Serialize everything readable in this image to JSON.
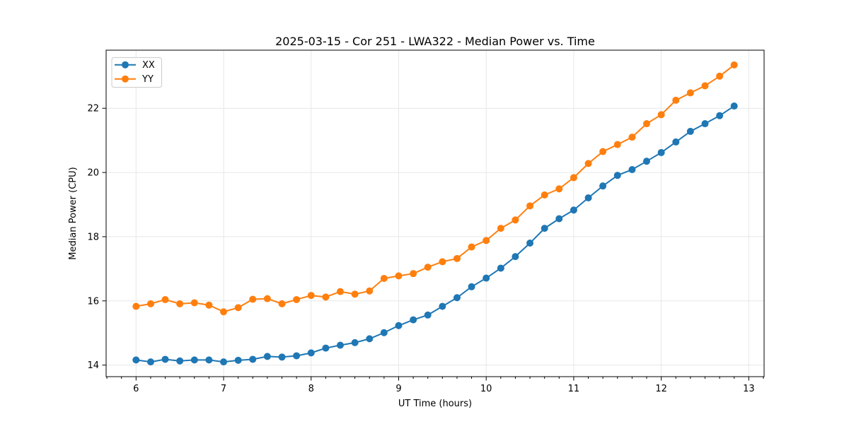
{
  "chart_data": {
    "type": "line",
    "title": "2025-03-15 - Cor 251 - LWA322 - Median Power vs. Time",
    "xlabel": "UT Time (hours)",
    "ylabel": "Median Power (CPU)",
    "xlim": [
      5.658,
      13.175
    ],
    "ylim": [
      13.64,
      23.81
    ],
    "x_ticks": [
      6,
      7,
      8,
      9,
      10,
      11,
      12,
      13
    ],
    "y_ticks": [
      14,
      16,
      18,
      20,
      22
    ],
    "x_minor_tick_step": 0.16667,
    "grid": true,
    "grid_color": "#e7e7e7",
    "spine_color": "#000000",
    "background_color": "#ffffff",
    "legend_position": "upper left",
    "marker": "circle",
    "x": [
      6.0,
      6.167,
      6.333,
      6.5,
      6.667,
      6.833,
      7.0,
      7.167,
      7.333,
      7.5,
      7.667,
      7.833,
      8.0,
      8.167,
      8.333,
      8.5,
      8.667,
      8.833,
      9.0,
      9.167,
      9.333,
      9.5,
      9.667,
      9.833,
      10.0,
      10.167,
      10.333,
      10.5,
      10.667,
      10.833,
      11.0,
      11.167,
      11.333,
      11.5,
      11.667,
      11.833,
      12.0,
      12.167,
      12.333,
      12.5,
      12.667,
      12.833
    ],
    "series": [
      {
        "name": "XX",
        "color": "#1f77b4",
        "values": [
          14.16,
          14.1,
          14.18,
          14.13,
          14.16,
          14.16,
          14.1,
          14.15,
          14.18,
          14.27,
          14.25,
          14.29,
          14.38,
          14.53,
          14.62,
          14.7,
          14.82,
          15.01,
          15.23,
          15.41,
          15.56,
          15.83,
          16.1,
          16.44,
          16.71,
          17.02,
          17.38,
          17.8,
          18.26,
          18.56,
          18.83,
          19.21,
          19.58,
          19.91,
          20.09,
          20.35,
          20.62,
          20.95,
          21.28,
          21.52,
          21.77,
          22.07
        ]
      },
      {
        "name": "YY",
        "color": "#ff7f0e",
        "values": [
          15.83,
          15.91,
          16.04,
          15.91,
          15.94,
          15.87,
          15.66,
          15.79,
          16.05,
          16.07,
          15.91,
          16.04,
          16.17,
          16.12,
          16.29,
          16.21,
          16.31,
          16.7,
          16.78,
          16.85,
          17.05,
          17.22,
          17.32,
          17.68,
          17.88,
          18.26,
          18.52,
          18.96,
          19.3,
          19.49,
          19.84,
          20.28,
          20.65,
          20.87,
          21.1,
          21.52,
          21.8,
          22.25,
          22.48,
          22.7,
          23.0,
          23.35
        ]
      }
    ]
  }
}
